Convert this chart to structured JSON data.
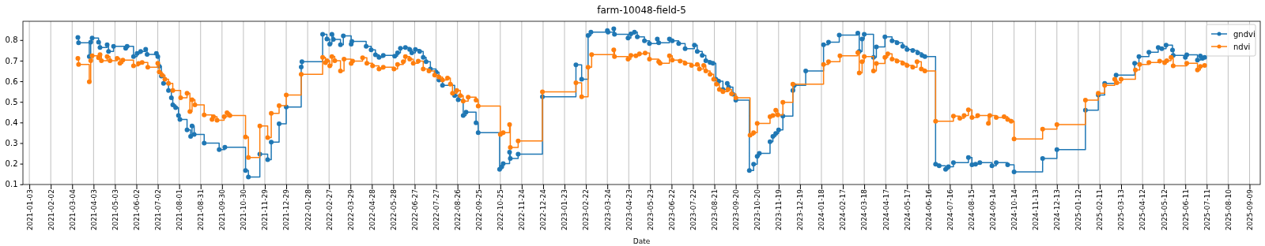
{
  "chart_data": {
    "type": "step",
    "title": "farm-10048-field-5",
    "xlabel": "Date",
    "xlim": [
      "2020-12-25",
      "2025-09-24"
    ],
    "ylim": [
      0.099,
      0.891
    ],
    "xticks": [
      "2021-01-03",
      "2021-02-02",
      "2021-03-04",
      "2021-04-03",
      "2021-05-03",
      "2021-06-02",
      "2021-07-02",
      "2021-08-01",
      "2021-08-31",
      "2021-09-30",
      "2021-10-30",
      "2021-11-29",
      "2021-12-29",
      "2022-01-28",
      "2022-02-27",
      "2022-03-29",
      "2022-04-28",
      "2022-05-28",
      "2022-06-27",
      "2022-07-27",
      "2022-08-26",
      "2022-09-25",
      "2022-10-25",
      "2022-11-24",
      "2022-12-24",
      "2023-01-23",
      "2023-02-22",
      "2023-03-24",
      "2023-04-23",
      "2023-05-23",
      "2023-06-22",
      "2023-07-22",
      "2023-08-21",
      "2023-09-20",
      "2023-10-20",
      "2023-11-19",
      "2023-12-19",
      "2024-01-18",
      "2024-02-17",
      "2024-03-18",
      "2024-04-17",
      "2024-05-17",
      "2024-06-16",
      "2024-07-16",
      "2024-08-15",
      "2024-09-14",
      "2024-10-14",
      "2024-11-13",
      "2024-12-13",
      "2025-01-12",
      "2025-02-11",
      "2025-03-13",
      "2025-04-12",
      "2025-05-12",
      "2025-06-11",
      "2025-07-11",
      "2025-08-10",
      "2025-09-09"
    ],
    "yticks": [
      0.1,
      0.2,
      0.3,
      0.4,
      0.5,
      0.6,
      0.7,
      0.8
    ],
    "grid": "x",
    "legend": "top right",
    "marker": "circle",
    "series": [
      {
        "name": "gndvi",
        "color": "#1f77b4",
        "x": [
          "2021-03-12",
          "2021-03-13",
          "2021-03-28",
          "2021-03-30",
          "2021-04-01",
          "2021-04-10",
          "2021-04-12",
          "2021-04-22",
          "2021-04-24",
          "2021-05-01",
          "2021-05-18",
          "2021-05-20",
          "2021-05-29",
          "2021-06-03",
          "2021-06-08",
          "2021-06-15",
          "2021-06-17",
          "2021-06-30",
          "2021-07-02",
          "2021-07-04",
          "2021-07-07",
          "2021-07-10",
          "2021-07-17",
          "2021-07-21",
          "2021-07-23",
          "2021-07-27",
          "2021-07-31",
          "2021-08-02",
          "2021-08-12",
          "2021-08-17",
          "2021-08-19",
          "2021-08-22",
          "2021-09-05",
          "2021-09-26",
          "2021-10-04",
          "2021-11-02",
          "2021-11-06",
          "2021-11-22",
          "2021-12-03",
          "2021-12-08",
          "2021-12-19",
          "2021-12-29",
          "2022-01-19",
          "2022-01-20",
          "2022-02-18",
          "2022-02-24",
          "2022-02-28",
          "2022-03-03",
          "2022-03-05",
          "2022-03-15",
          "2022-03-19",
          "2022-03-30",
          "2022-03-31",
          "2022-04-20",
          "2022-04-27",
          "2022-05-03",
          "2022-05-08",
          "2022-05-14",
          "2022-05-30",
          "2022-06-03",
          "2022-06-07",
          "2022-06-14",
          "2022-06-20",
          "2022-06-23",
          "2022-06-28",
          "2022-07-04",
          "2022-07-09",
          "2022-07-13",
          "2022-07-19",
          "2022-07-27",
          "2022-07-31",
          "2022-08-05",
          "2022-08-22",
          "2022-08-27",
          "2022-09-03",
          "2022-09-07",
          "2022-09-21",
          "2022-09-24",
          "2022-10-24",
          "2022-10-27",
          "2022-10-29",
          "2022-11-07",
          "2022-11-08",
          "2022-11-19",
          "2022-12-23",
          "2023-02-08",
          "2023-02-16",
          "2023-02-25",
          "2023-03-01",
          "2023-03-24",
          "2023-03-25",
          "2023-04-02",
          "2023-04-03",
          "2023-04-22",
          "2023-04-26",
          "2023-05-01",
          "2023-05-05",
          "2023-05-15",
          "2023-05-22",
          "2023-06-02",
          "2023-06-04",
          "2023-06-19",
          "2023-06-23",
          "2023-07-02",
          "2023-07-11",
          "2023-07-24",
          "2023-07-28",
          "2023-08-04",
          "2023-08-09",
          "2023-08-15",
          "2023-08-19",
          "2023-08-23",
          "2023-08-27",
          "2023-09-02",
          "2023-09-08",
          "2023-09-10",
          "2023-09-16",
          "2023-09-20",
          "2023-10-09",
          "2023-10-15",
          "2023-10-20",
          "2023-10-23",
          "2023-11-07",
          "2023-11-11",
          "2023-11-15",
          "2023-11-19",
          "2023-11-25",
          "2023-12-09",
          "2023-12-11",
          "2023-12-27",
          "2024-01-21",
          "2024-01-28",
          "2024-02-12",
          "2024-03-09",
          "2024-03-11",
          "2024-03-15",
          "2024-03-18",
          "2024-03-31",
          "2024-04-04",
          "2024-04-16",
          "2024-04-26",
          "2024-05-03",
          "2024-05-11",
          "2024-05-17",
          "2024-05-25",
          "2024-06-01",
          "2024-06-07",
          "2024-06-11",
          "2024-06-26",
          "2024-07-01",
          "2024-07-10",
          "2024-07-14",
          "2024-07-21",
          "2024-08-11",
          "2024-08-16",
          "2024-08-21",
          "2024-08-27",
          "2024-09-13",
          "2024-09-19",
          "2024-10-05",
          "2024-10-14",
          "2024-11-23",
          "2024-12-13",
          "2025-01-22",
          "2025-02-09",
          "2025-02-18",
          "2025-03-06",
          "2025-04-01",
          "2025-04-07",
          "2025-04-21",
          "2025-05-04",
          "2025-05-09",
          "2025-05-15",
          "2025-05-24",
          "2025-05-25",
          "2025-06-11",
          "2025-06-13",
          "2025-06-28",
          "2025-07-02",
          "2025-07-05",
          "2025-07-08"
        ],
        "values": [
          0.813,
          0.787,
          0.72,
          0.79,
          0.81,
          0.79,
          0.764,
          0.777,
          0.745,
          0.77,
          0.76,
          0.77,
          0.72,
          0.735,
          0.745,
          0.755,
          0.73,
          0.735,
          0.72,
          0.673,
          0.625,
          0.59,
          0.555,
          0.52,
          0.485,
          0.472,
          0.434,
          0.415,
          0.364,
          0.332,
          0.383,
          0.342,
          0.3,
          0.268,
          0.28,
          0.167,
          0.135,
          0.246,
          0.22,
          0.305,
          0.394,
          0.475,
          0.669,
          0.695,
          0.828,
          0.805,
          0.78,
          0.828,
          0.803,
          0.777,
          0.82,
          0.78,
          0.793,
          0.77,
          0.752,
          0.728,
          0.716,
          0.726,
          0.722,
          0.738,
          0.76,
          0.764,
          0.754,
          0.738,
          0.754,
          0.745,
          0.716,
          0.695,
          0.66,
          0.644,
          0.606,
          0.58,
          0.53,
          0.51,
          0.434,
          0.45,
          0.398,
          0.351,
          0.173,
          0.185,
          0.2,
          0.256,
          0.225,
          0.246,
          0.525,
          0.68,
          0.61,
          0.822,
          0.838,
          0.846,
          0.838,
          0.855,
          0.828,
          0.81,
          0.83,
          0.838,
          0.815,
          0.796,
          0.783,
          0.805,
          0.787,
          0.805,
          0.796,
          0.783,
          0.758,
          0.775,
          0.745,
          0.726,
          0.7,
          0.691,
          0.687,
          0.61,
          0.6,
          0.56,
          0.59,
          0.572,
          0.537,
          0.508,
          0.167,
          0.198,
          0.236,
          0.25,
          0.307,
          0.332,
          0.347,
          0.364,
          0.431,
          0.555,
          0.58,
          0.65,
          0.777,
          0.79,
          0.824,
          0.834,
          0.745,
          0.805,
          0.828,
          0.716,
          0.767,
          0.815,
          0.796,
          0.787,
          0.77,
          0.754,
          0.749,
          0.738,
          0.726,
          0.72,
          0.198,
          0.19,
          0.173,
          0.185,
          0.205,
          0.23,
          0.195,
          0.198,
          0.205,
          0.19,
          0.205,
          0.195,
          0.16,
          0.225,
          0.268,
          0.46,
          0.533,
          0.59,
          0.63,
          0.687,
          0.72,
          0.741,
          0.764,
          0.758,
          0.775,
          0.751,
          0.726,
          0.716,
          0.728,
          0.703,
          0.723,
          0.711,
          0.716
        ]
      },
      {
        "name": "ndvi",
        "color": "#ff7f0e",
        "x": [
          "2021-03-12",
          "2021-03-13",
          "2021-03-28",
          "2021-03-30",
          "2021-04-01",
          "2021-04-10",
          "2021-04-12",
          "2021-04-14",
          "2021-04-22",
          "2021-04-26",
          "2021-05-06",
          "2021-05-10",
          "2021-05-14",
          "2021-05-29",
          "2021-06-05",
          "2021-06-10",
          "2021-06-18",
          "2021-07-02",
          "2021-07-04",
          "2021-07-08",
          "2021-07-12",
          "2021-07-17",
          "2021-07-23",
          "2021-08-03",
          "2021-08-12",
          "2021-08-16",
          "2021-08-19",
          "2021-08-23",
          "2021-09-05",
          "2021-09-16",
          "2021-09-18",
          "2021-09-23",
          "2021-10-03",
          "2021-10-07",
          "2021-10-11",
          "2021-11-02",
          "2021-11-06",
          "2021-11-22",
          "2021-12-03",
          "2021-12-08",
          "2021-12-19",
          "2021-12-29",
          "2022-01-19",
          "2022-02-18",
          "2022-02-22",
          "2022-02-24",
          "2022-02-28",
          "2022-03-03",
          "2022-03-07",
          "2022-03-15",
          "2022-03-20",
          "2022-03-30",
          "2022-04-01",
          "2022-04-15",
          "2022-04-21",
          "2022-04-29",
          "2022-05-08",
          "2022-05-14",
          "2022-05-29",
          "2022-06-03",
          "2022-06-11",
          "2022-06-14",
          "2022-06-20",
          "2022-06-25",
          "2022-07-02",
          "2022-07-09",
          "2022-07-17",
          "2022-07-25",
          "2022-07-31",
          "2022-08-05",
          "2022-08-12",
          "2022-08-16",
          "2022-08-19",
          "2022-08-25",
          "2022-08-30",
          "2022-09-03",
          "2022-09-10",
          "2022-09-21",
          "2022-09-24",
          "2022-10-25",
          "2022-10-29",
          "2022-11-07",
          "2022-11-08",
          "2022-11-19",
          "2022-12-23",
          "2023-02-08",
          "2023-02-16",
          "2023-02-25",
          "2023-03-02",
          "2023-04-02",
          "2023-04-03",
          "2023-04-22",
          "2023-04-26",
          "2023-05-03",
          "2023-05-08",
          "2023-05-16",
          "2023-05-22",
          "2023-06-04",
          "2023-06-06",
          "2023-06-19",
          "2023-06-23",
          "2023-07-04",
          "2023-07-11",
          "2023-07-20",
          "2023-07-28",
          "2023-07-31",
          "2023-08-06",
          "2023-08-09",
          "2023-08-15",
          "2023-08-20",
          "2023-08-24",
          "2023-08-28",
          "2023-09-02",
          "2023-09-09",
          "2023-09-14",
          "2023-09-20",
          "2023-10-10",
          "2023-10-15",
          "2023-10-20",
          "2023-11-07",
          "2023-11-11",
          "2023-11-15",
          "2023-11-18",
          "2023-11-25",
          "2023-12-09",
          "2024-01-21",
          "2024-01-28",
          "2024-02-13",
          "2024-03-09",
          "2024-03-11",
          "2024-03-15",
          "2024-03-18",
          "2024-03-31",
          "2024-04-04",
          "2024-04-16",
          "2024-04-20",
          "2024-04-26",
          "2024-05-03",
          "2024-05-11",
          "2024-05-17",
          "2024-05-25",
          "2024-05-31",
          "2024-06-06",
          "2024-06-11",
          "2024-06-26",
          "2024-07-21",
          "2024-07-30",
          "2024-08-05",
          "2024-08-11",
          "2024-08-16",
          "2024-08-24",
          "2024-09-08",
          "2024-09-10",
          "2024-09-19",
          "2024-09-30",
          "2024-10-05",
          "2024-10-10",
          "2024-10-14",
          "2024-11-23",
          "2024-12-13",
          "2025-01-22",
          "2025-02-09",
          "2025-02-18",
          "2025-03-04",
          "2025-03-07",
          "2025-03-13",
          "2025-04-02",
          "2025-04-08",
          "2025-04-21",
          "2025-05-06",
          "2025-05-13",
          "2025-05-16",
          "2025-05-22",
          "2025-05-25",
          "2025-06-13",
          "2025-06-28",
          "2025-07-02",
          "2025-07-08"
        ],
        "values": [
          0.711,
          0.682,
          0.597,
          0.7,
          0.724,
          0.714,
          0.729,
          0.7,
          0.72,
          0.7,
          0.711,
          0.687,
          0.703,
          0.675,
          0.686,
          0.691,
          0.668,
          0.687,
          0.645,
          0.63,
          0.61,
          0.59,
          0.555,
          0.52,
          0.542,
          0.453,
          0.51,
          0.485,
          0.437,
          0.415,
          0.428,
          0.411,
          0.428,
          0.447,
          0.434,
          0.33,
          0.23,
          0.383,
          0.327,
          0.444,
          0.482,
          0.533,
          0.634,
          0.716,
          0.69,
          0.7,
          0.675,
          0.72,
          0.7,
          0.65,
          0.707,
          0.686,
          0.698,
          0.714,
          0.687,
          0.675,
          0.66,
          0.668,
          0.66,
          0.682,
          0.695,
          0.72,
          0.707,
          0.687,
          0.698,
          0.66,
          0.65,
          0.63,
          0.62,
          0.606,
          0.616,
          0.586,
          0.542,
          0.555,
          0.53,
          0.504,
          0.523,
          0.508,
          0.48,
          0.342,
          0.351,
          0.39,
          0.279,
          0.31,
          0.549,
          0.593,
          0.525,
          0.668,
          0.729,
          0.752,
          0.72,
          0.707,
          0.726,
          0.724,
          0.733,
          0.737,
          0.707,
          0.695,
          0.687,
          0.724,
          0.703,
          0.698,
          0.687,
          0.677,
          0.682,
          0.66,
          0.677,
          0.65,
          0.634,
          0.61,
          0.586,
          0.56,
          0.55,
          0.56,
          0.539,
          0.52,
          0.338,
          0.351,
          0.396,
          0.428,
          0.434,
          0.46,
          0.437,
          0.498,
          0.586,
          0.682,
          0.695,
          0.724,
          0.739,
          0.64,
          0.695,
          0.72,
          0.65,
          0.686,
          0.716,
          0.733,
          0.707,
          0.698,
          0.687,
          0.677,
          0.668,
          0.695,
          0.66,
          0.65,
          0.406,
          0.431,
          0.42,
          0.434,
          0.462,
          0.424,
          0.434,
          0.396,
          0.434,
          0.424,
          0.428,
          0.415,
          0.406,
          0.32,
          0.368,
          0.39,
          0.508,
          0.542,
          0.58,
          0.61,
          0.593,
          0.61,
          0.655,
          0.682,
          0.691,
          0.698,
          0.69,
          0.7,
          0.716,
          0.675,
          0.687,
          0.655,
          0.672,
          0.677
        ]
      }
    ]
  }
}
